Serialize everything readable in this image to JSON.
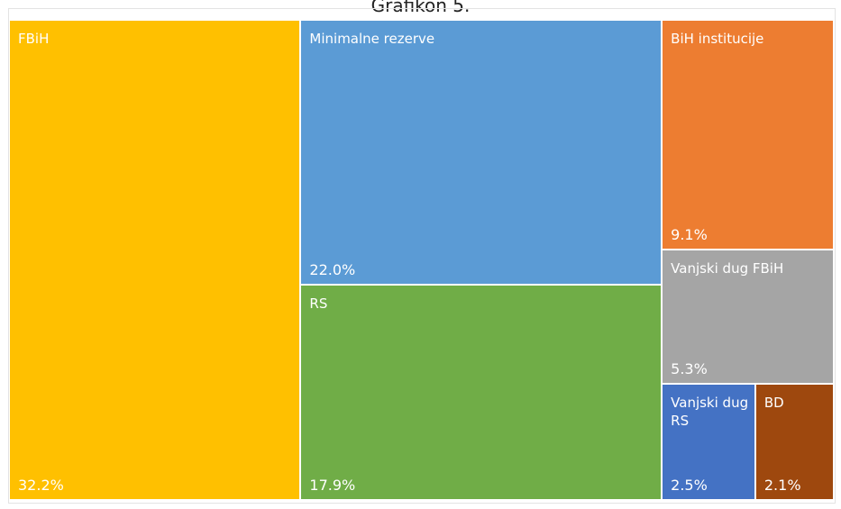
{
  "chart_data": {
    "type": "treemap",
    "title": "Grafikon 5.",
    "categories": [
      "FBiH",
      "Minimalne rezerve",
      "RS",
      "BiH institucije",
      "Vanjski dug FBiH",
      "Vanjski dug RS",
      "BD"
    ],
    "values": [
      32.2,
      22.0,
      17.9,
      9.1,
      5.3,
      2.5,
      2.1
    ],
    "value_labels": [
      "32.2%",
      "22.0%",
      "17.9%",
      "9.1%",
      "5.3%",
      "2.5%",
      "2.1%"
    ],
    "colors": [
      "#ffc000",
      "#5b9bd5",
      "#70ad47",
      "#ed7d31",
      "#a5a5a5",
      "#4472c4",
      "#9e480e"
    ]
  }
}
